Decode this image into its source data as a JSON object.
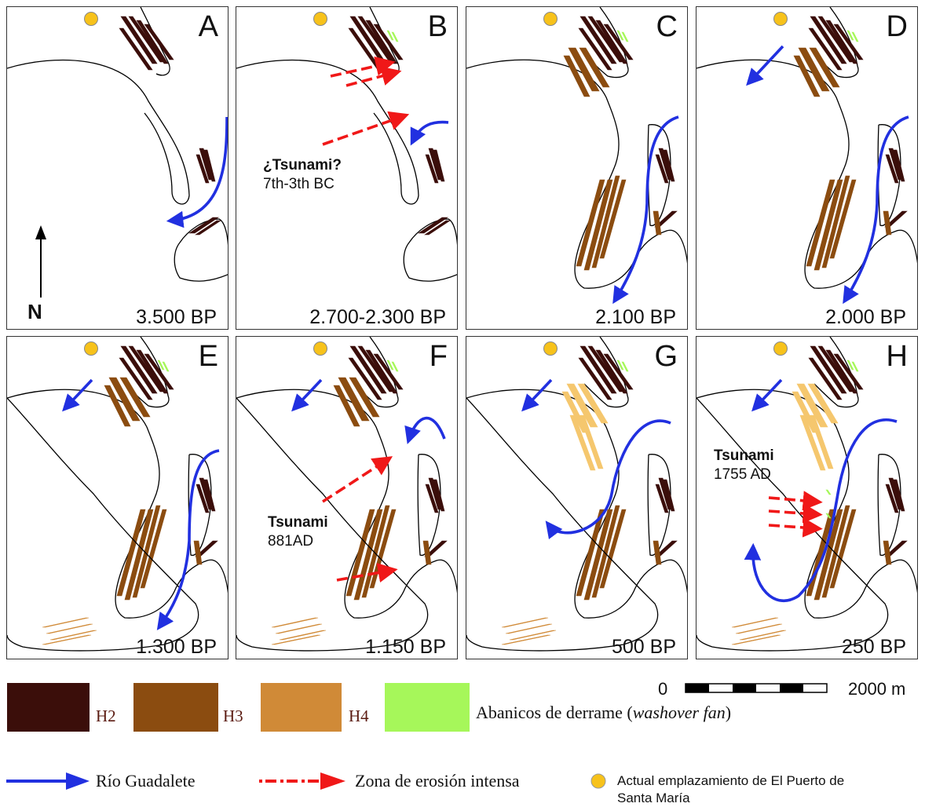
{
  "colors": {
    "H2": "#3b0e0a",
    "H3": "#8b4c10",
    "H4": "#d08a37",
    "H4_light": "#f5c76e",
    "washover": "#a6f75a",
    "river": "#2130e0",
    "erosion": "#f01818",
    "town": "#f7c21b"
  },
  "panels": [
    {
      "letter": "A",
      "date": "3.500 BP",
      "north": "N"
    },
    {
      "letter": "B",
      "date": "2.700-2.300 BP",
      "event_title": "¿Tsunami?",
      "event_date": "7th-3th BC"
    },
    {
      "letter": "C",
      "date": "2.100 BP"
    },
    {
      "letter": "D",
      "date": "2.000 BP"
    },
    {
      "letter": "E",
      "date": "1.300 BP"
    },
    {
      "letter": "F",
      "date": "1.150 BP",
      "event_title": "Tsunami",
      "event_date": "881AD"
    },
    {
      "letter": "G",
      "date": "500 BP"
    },
    {
      "letter": "H",
      "date": "250 BP",
      "event_title": "Tsunami",
      "event_date": "1755 AD"
    }
  ],
  "legend": {
    "H2": "H2",
    "H3": "H3",
    "H4": "H4",
    "washover_main": "Abanicos de derrame (",
    "washover_italic": "washover fan",
    "washover_close": ")",
    "river": "Río Guadalete",
    "erosion": "Zona de erosión intensa",
    "town_line1": "Actual emplazamiento de El Puerto de",
    "town_line2": "Santa María"
  },
  "scale": {
    "start": "0",
    "end": "2000 m"
  }
}
